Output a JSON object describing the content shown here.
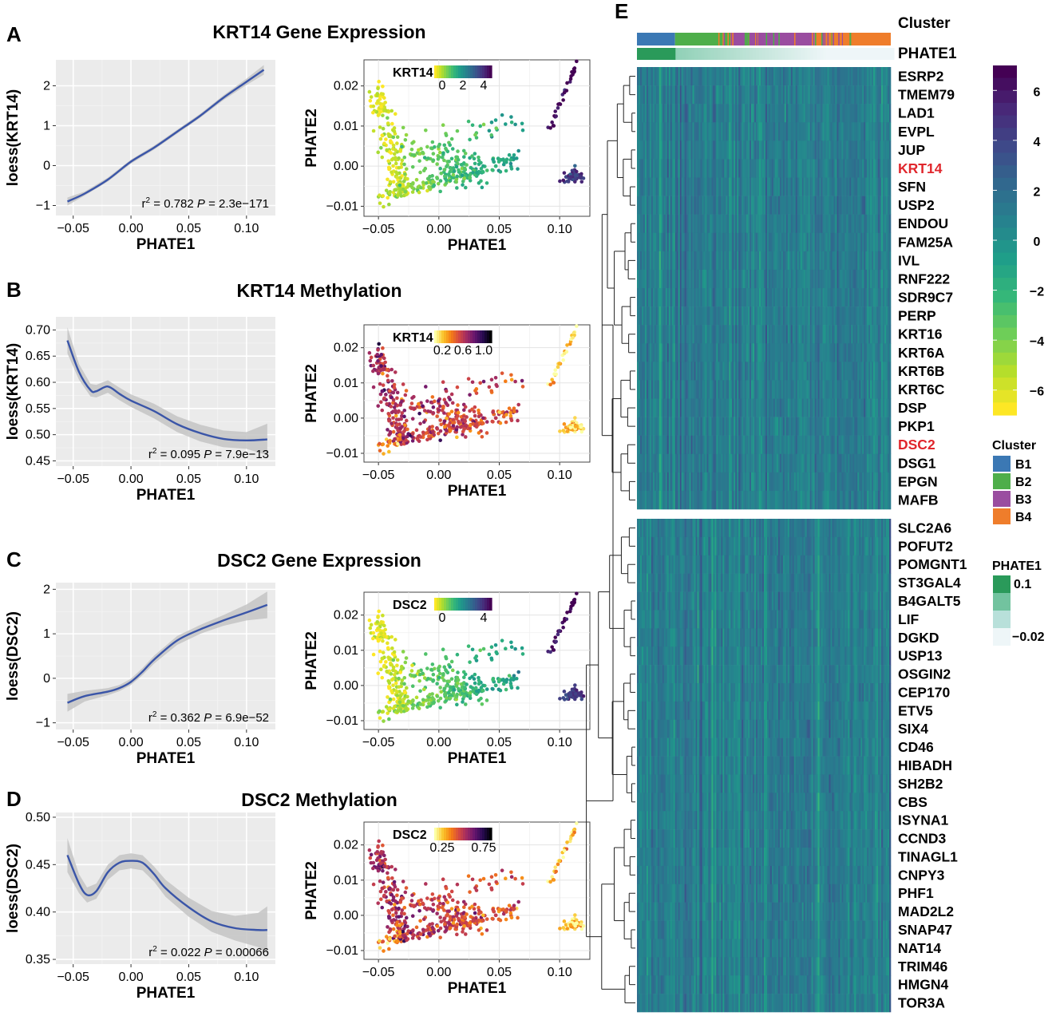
{
  "colors": {
    "viridis": [
      "#fde725",
      "#b5de2b",
      "#6ece58",
      "#35b779",
      "#1f9e89",
      "#26828e",
      "#31688e",
      "#3e4989",
      "#482878",
      "#440154"
    ],
    "inferno": [
      "#fcffa4",
      "#fac228",
      "#f57d15",
      "#d44842",
      "#9f2a63",
      "#65156e",
      "#280b53",
      "#000004"
    ],
    "smooth_line": "#3a55a8",
    "ribbon": "#c4c4c4",
    "panel_bg": "#ebebeb",
    "cluster_B1": "#3b78b4",
    "cluster_B2": "#4eae4a",
    "cluster_B3": "#9a4da0",
    "cluster_B4": "#ef7d2b",
    "phate_high": "#2a9a5a",
    "phate_low": "#eef6f8",
    "highlight_gene": "#e0262c"
  },
  "panel_labels": {
    "A": "A",
    "B": "B",
    "C": "C",
    "D": "D",
    "E": "E"
  },
  "panels": [
    {
      "id": "A",
      "title": "KRT14 Gene Expression",
      "loess": {
        "ylabel": "loess(KRT14)",
        "xlabel": "PHATE1",
        "xlim": [
          -0.065,
          0.125
        ],
        "ylim": [
          -1.25,
          2.65
        ],
        "xticks": [
          -0.05,
          0.0,
          0.05,
          0.1
        ],
        "xtick_labels": [
          "−0.05",
          "0.00",
          "0.05",
          "0.10"
        ],
        "yticks": [
          -1,
          0,
          1,
          2
        ],
        "ytick_labels": [
          "−1",
          "0",
          "1",
          "2"
        ],
        "curve_x": [
          -0.055,
          -0.04,
          -0.02,
          0.0,
          0.02,
          0.04,
          0.06,
          0.08,
          0.1,
          0.115
        ],
        "curve_y": [
          -0.9,
          -0.7,
          -0.35,
          0.1,
          0.45,
          0.85,
          1.25,
          1.7,
          2.1,
          2.4
        ],
        "band": [
          0.1,
          0.05,
          0.05,
          0.05,
          0.05,
          0.05,
          0.05,
          0.06,
          0.08,
          0.12
        ],
        "r2": "0.782",
        "p": "2.3e−171"
      },
      "scatter": {
        "legend_gene": "KRT14",
        "colormap": "viridis",
        "legend_ticks": [
          "0",
          "2",
          "4"
        ],
        "xlabel": "PHATE1",
        "ylabel": "PHATE2",
        "xlim": [
          -0.062,
          0.125
        ],
        "ylim": [
          -0.0125,
          0.0265
        ],
        "xticks": [
          -0.05,
          0.0,
          0.05,
          0.1
        ],
        "xtick_labels": [
          "−0.05",
          "0.00",
          "0.05",
          "0.10"
        ],
        "yticks": [
          -0.01,
          0.0,
          0.01,
          0.02
        ],
        "ytick_labels": [
          "−0.01",
          "0.00",
          "0.01",
          "0.02"
        ]
      }
    },
    {
      "id": "B",
      "title": "KRT14 Methylation",
      "loess": {
        "ylabel": "loess(KRT14)",
        "xlabel": "PHATE1",
        "xlim": [
          -0.065,
          0.125
        ],
        "ylim": [
          0.44,
          0.725
        ],
        "xticks": [
          -0.05,
          0.0,
          0.05,
          0.1
        ],
        "xtick_labels": [
          "−0.05",
          "0.00",
          "0.05",
          "0.10"
        ],
        "yticks": [
          0.45,
          0.5,
          0.55,
          0.6,
          0.65,
          0.7
        ],
        "ytick_labels": [
          "0.45",
          "0.50",
          "0.55",
          "0.60",
          "0.65",
          "0.70"
        ],
        "curve_x": [
          -0.055,
          -0.045,
          -0.035,
          -0.03,
          -0.02,
          -0.01,
          0.0,
          0.02,
          0.04,
          0.06,
          0.08,
          0.1,
          0.118
        ],
        "curve_y": [
          0.68,
          0.62,
          0.585,
          0.583,
          0.592,
          0.578,
          0.565,
          0.545,
          0.52,
          0.503,
          0.492,
          0.489,
          0.491
        ],
        "band": [
          0.025,
          0.015,
          0.012,
          0.012,
          0.012,
          0.012,
          0.012,
          0.014,
          0.015,
          0.016,
          0.016,
          0.016,
          0.03
        ],
        "r2": "0.095",
        "p": "7.9e−13"
      },
      "scatter": {
        "legend_gene": "KRT14",
        "colormap": "inferno",
        "legend_ticks": [
          "0.2",
          "0.6",
          "1.0"
        ],
        "xlabel": "PHATE1",
        "ylabel": "PHATE2",
        "xlim": [
          -0.062,
          0.125
        ],
        "ylim": [
          -0.0125,
          0.0265
        ],
        "xticks": [
          -0.05,
          0.0,
          0.05,
          0.1
        ],
        "xtick_labels": [
          "−0.05",
          "0.00",
          "0.05",
          "0.10"
        ],
        "yticks": [
          -0.01,
          0.0,
          0.01,
          0.02
        ],
        "ytick_labels": [
          "−0.01",
          "0.00",
          "0.01",
          "0.02"
        ]
      }
    },
    {
      "id": "C",
      "title": "DSC2 Gene Expression",
      "loess": {
        "ylabel": "loess(DSC2)",
        "xlabel": "PHATE1",
        "xlim": [
          -0.065,
          0.125
        ],
        "ylim": [
          -1.15,
          2.15
        ],
        "xticks": [
          -0.05,
          0.0,
          0.05,
          0.1
        ],
        "xtick_labels": [
          "−0.05",
          "0.00",
          "0.05",
          "0.10"
        ],
        "yticks": [
          -1,
          0,
          1,
          2
        ],
        "ytick_labels": [
          "−1",
          "0",
          "1",
          "2"
        ],
        "curve_x": [
          -0.055,
          -0.04,
          -0.02,
          -0.01,
          0.0,
          0.01,
          0.02,
          0.04,
          0.06,
          0.08,
          0.1,
          0.118
        ],
        "curve_y": [
          -0.55,
          -0.4,
          -0.3,
          -0.22,
          -0.08,
          0.15,
          0.42,
          0.85,
          1.1,
          1.3,
          1.48,
          1.65
        ],
        "band": [
          0.2,
          0.12,
          0.08,
          0.07,
          0.07,
          0.08,
          0.09,
          0.1,
          0.1,
          0.12,
          0.18,
          0.3
        ],
        "r2": "0.362",
        "p": "6.9e−52"
      },
      "scatter": {
        "legend_gene": "DSC2",
        "colormap": "viridis",
        "legend_ticks": [
          "0",
          "4"
        ],
        "xlabel": "PHATE1",
        "ylabel": "PHATE2",
        "xlim": [
          -0.062,
          0.125
        ],
        "ylim": [
          -0.0125,
          0.0265
        ],
        "xticks": [
          -0.05,
          0.0,
          0.05,
          0.1
        ],
        "xtick_labels": [
          "−0.05",
          "0.00",
          "0.05",
          "0.10"
        ],
        "yticks": [
          -0.01,
          0.0,
          0.01,
          0.02
        ],
        "ytick_labels": [
          "−0.01",
          "0.00",
          "0.01",
          "0.02"
        ]
      }
    },
    {
      "id": "D",
      "title": "DSC2 Methylation",
      "loess": {
        "ylabel": "loess(DSC2)",
        "xlabel": "PHATE1",
        "xlim": [
          -0.065,
          0.125
        ],
        "ylim": [
          0.345,
          0.505
        ],
        "xticks": [
          -0.05,
          0.0,
          0.05,
          0.1
        ],
        "xtick_labels": [
          "−0.05",
          "0.00",
          "0.05",
          "0.10"
        ],
        "yticks": [
          0.35,
          0.4,
          0.45,
          0.5
        ],
        "ytick_labels": [
          "0.35",
          "0.40",
          "0.45",
          "0.50"
        ],
        "curve_x": [
          -0.055,
          -0.045,
          -0.038,
          -0.03,
          -0.02,
          -0.01,
          0.0,
          0.01,
          0.02,
          0.03,
          0.05,
          0.07,
          0.09,
          0.11,
          0.118
        ],
        "curve_y": [
          0.46,
          0.43,
          0.418,
          0.422,
          0.442,
          0.452,
          0.454,
          0.452,
          0.44,
          0.425,
          0.405,
          0.39,
          0.383,
          0.381,
          0.381
        ],
        "band": [
          0.018,
          0.01,
          0.008,
          0.008,
          0.008,
          0.008,
          0.008,
          0.008,
          0.008,
          0.009,
          0.01,
          0.011,
          0.013,
          0.018,
          0.025
        ],
        "r2": "0.022",
        "p": "0.00066"
      },
      "scatter": {
        "legend_gene": "DSC2",
        "colormap": "inferno",
        "legend_ticks": [
          "0.25",
          "0.75"
        ],
        "xlabel": "PHATE1",
        "ylabel": "PHATE2",
        "xlim": [
          -0.062,
          0.125
        ],
        "ylim": [
          -0.0125,
          0.0265
        ],
        "xticks": [
          -0.05,
          0.0,
          0.05,
          0.1
        ],
        "xtick_labels": [
          "−0.05",
          "0.00",
          "0.05",
          "0.10"
        ],
        "yticks": [
          -0.01,
          0.0,
          0.01,
          0.02
        ],
        "ytick_labels": [
          "−0.01",
          "0.00",
          "0.01",
          "0.02"
        ]
      }
    }
  ],
  "heatmap": {
    "annotation_labels": [
      "Cluster",
      "PHATE1"
    ],
    "cluster_fractions": {
      "B1": 0.15,
      "B2": 0.22,
      "B3": 0.33,
      "B4": 0.3
    },
    "genes_top": [
      "ESRP2",
      "TMEM79",
      "LAD1",
      "EVPL",
      "JUP",
      "KRT14",
      "SFN",
      "USP2",
      "ENDOU",
      "FAM25A",
      "IVL",
      "RNF222",
      "SDR9C7",
      "PERP",
      "KRT16",
      "KRT6A",
      "KRT6B",
      "KRT6C",
      "DSP",
      "PKP1",
      "DSC2",
      "DSG1",
      "EPGN",
      "MAFB"
    ],
    "genes_bottom": [
      "SLC2A6",
      "POFUT2",
      "POMGNT1",
      "ST3GAL4",
      "B4GALT5",
      "LIF",
      "DGKD",
      "USP13",
      "OSGIN2",
      "CEP170",
      "ETV5",
      "SIX4",
      "CD46",
      "HIBADH",
      "SH2B2",
      "CBS",
      "ISYNA1",
      "CCND3",
      "TINAGL1",
      "CNPY3",
      "PHF1",
      "MAD2L2",
      "SNAP47",
      "NAT14",
      "TRIM46",
      "HMGN4",
      "TOR3A"
    ],
    "highlighted_genes": [
      "KRT14",
      "DSC2"
    ],
    "colorbar_ticks": [
      6,
      4,
      2,
      0,
      -2,
      -4,
      -6
    ],
    "colorbar_tick_labels": [
      "6",
      "4",
      "2",
      "0",
      "−2",
      "−4",
      "−6"
    ],
    "colorbar_range": [
      -7,
      7
    ],
    "cluster_legend": {
      "title": "Cluster",
      "items": [
        "B1",
        "B2",
        "B3",
        "B4"
      ]
    },
    "phate_legend": {
      "title": "PHATE1",
      "labels": [
        "0.1",
        "−0.02"
      ]
    }
  }
}
